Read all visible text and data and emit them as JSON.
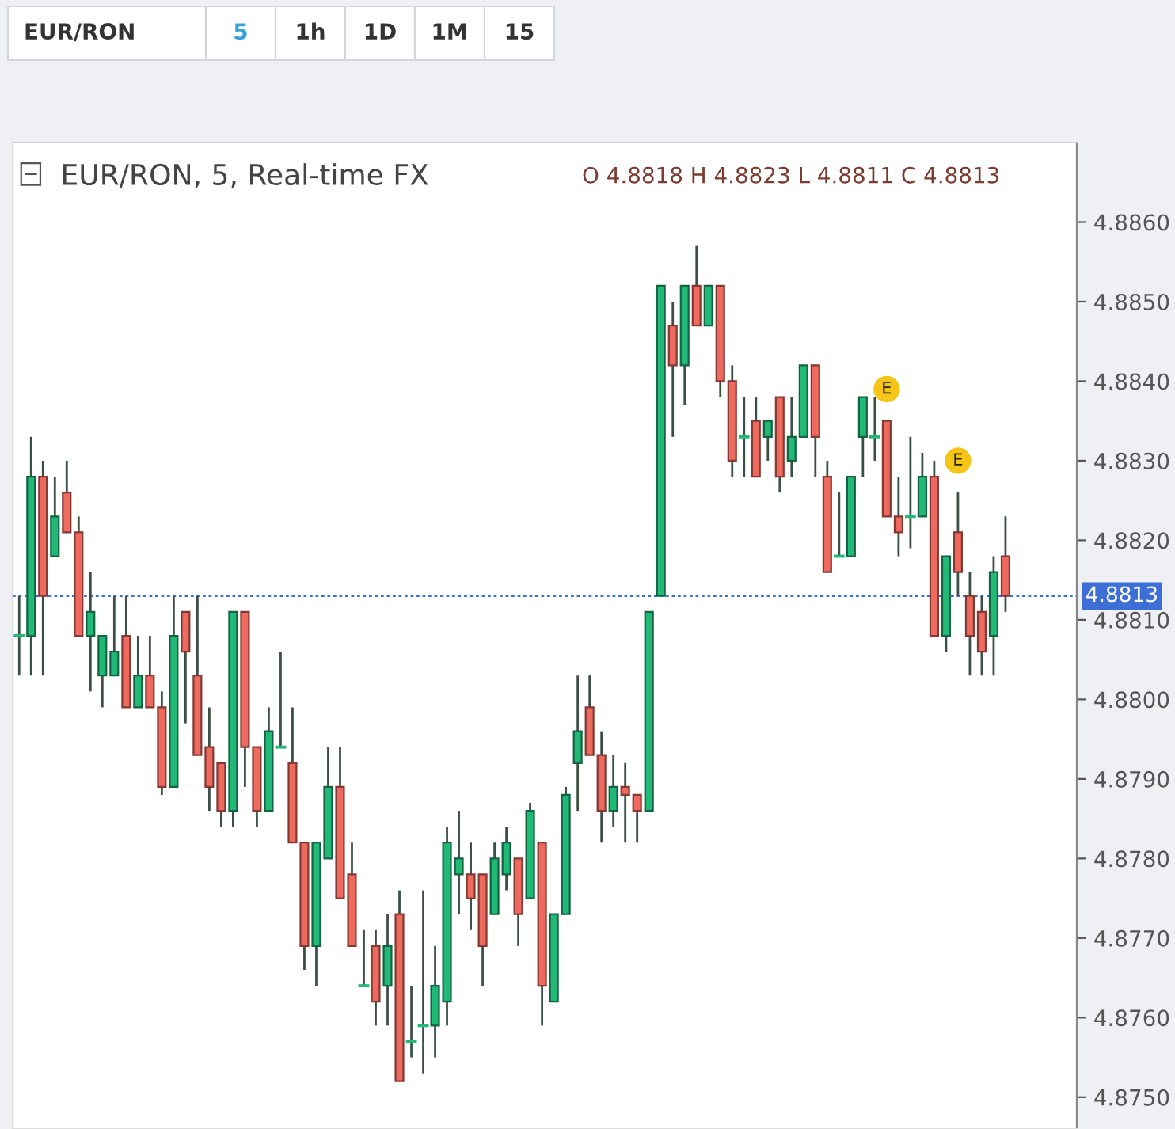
{
  "chart_data": {
    "type": "candlestick",
    "title": "EUR/RON, 5, Real-time FX",
    "subtitle": "O 4.8818 H 4.8823 L 4.8811 C 4.8813",
    "annotations": [
      "EUR/RON",
      "5",
      "1h",
      "1D",
      "1M",
      "15",
      {
        "text": "E",
        "y": 4.8839
      },
      {
        "text": "E",
        "y": 4.883
      }
    ],
    "categories": [
      null,
      null,
      null,
      null,
      null,
      null,
      null,
      null,
      null,
      null,
      null,
      null,
      null,
      null,
      null,
      null,
      null,
      null,
      null,
      null,
      null,
      null,
      null,
      null,
      null,
      null,
      null,
      null,
      null,
      null,
      null,
      null,
      null,
      null,
      null,
      null,
      null,
      null,
      null,
      null,
      null,
      null,
      null,
      null,
      null,
      null,
      null,
      null,
      null,
      null,
      null,
      null,
      null,
      null,
      null,
      null,
      null,
      null,
      null,
      null,
      null,
      null,
      null,
      null,
      null,
      null,
      null,
      null,
      null,
      null,
      null,
      null,
      null,
      null,
      null,
      null,
      null,
      null,
      null,
      null,
      null,
      null,
      null,
      null
    ],
    "ohlc": [
      [
        4.8808,
        4.8813,
        4.8803,
        4.8808
      ],
      [
        4.8808,
        4.8833,
        4.8803,
        4.8828
      ],
      [
        4.8828,
        4.883,
        4.8803,
        4.8813
      ],
      [
        4.8818,
        4.8828,
        4.8818,
        4.8823
      ],
      [
        4.8826,
        4.883,
        4.8821,
        4.8821
      ],
      [
        4.8821,
        4.8823,
        4.8808,
        4.8808
      ],
      [
        4.8808,
        4.8816,
        4.8801,
        4.8811
      ],
      [
        4.8803,
        4.8808,
        4.8799,
        4.8808
      ],
      [
        4.8803,
        4.8813,
        4.8803,
        4.8806
      ],
      [
        4.8808,
        4.8813,
        4.8799,
        4.8799
      ],
      [
        4.8799,
        4.8808,
        4.8799,
        4.8803
      ],
      [
        4.8803,
        4.8808,
        4.8799,
        4.8799
      ],
      [
        4.8799,
        4.8801,
        4.8788,
        4.8789
      ],
      [
        4.8789,
        4.8813,
        4.8789,
        4.8808
      ],
      [
        4.8811,
        4.8811,
        4.8797,
        4.8806
      ],
      [
        4.8803,
        4.8813,
        4.8793,
        4.8793
      ],
      [
        4.8794,
        4.8799,
        4.8786,
        4.8789
      ],
      [
        4.8792,
        4.8792,
        4.8784,
        4.8786
      ],
      [
        4.8786,
        4.8811,
        4.8784,
        4.8811
      ],
      [
        4.8811,
        4.8811,
        4.8789,
        4.8794
      ],
      [
        4.8794,
        4.8794,
        4.8784,
        4.8786
      ],
      [
        4.8786,
        4.8799,
        4.8786,
        4.8796
      ],
      [
        4.8794,
        4.8806,
        4.8794,
        4.8794
      ],
      [
        4.8792,
        4.8799,
        4.8782,
        4.8782
      ],
      [
        4.8782,
        4.8782,
        4.8766,
        4.8769
      ],
      [
        4.8769,
        4.8782,
        4.8764,
        4.8782
      ],
      [
        4.878,
        4.8794,
        4.878,
        4.8789
      ],
      [
        4.8789,
        4.8794,
        4.8775,
        4.8775
      ],
      [
        4.8778,
        4.8782,
        4.8769,
        4.8769
      ],
      [
        4.8764,
        4.8771,
        4.8764,
        4.8764
      ],
      [
        4.8769,
        4.8771,
        4.8759,
        4.8762
      ],
      [
        4.8764,
        4.8773,
        4.8759,
        4.8769
      ],
      [
        4.8773,
        4.8776,
        4.8752,
        4.8752
      ],
      [
        4.8757,
        4.8764,
        4.8755,
        4.8757
      ],
      [
        4.8759,
        4.8776,
        4.8753,
        4.8759
      ],
      [
        4.8759,
        4.8769,
        4.8755,
        4.8764
      ],
      [
        4.8762,
        4.8784,
        4.8759,
        4.8782
      ],
      [
        4.8778,
        4.8786,
        4.8773,
        4.878
      ],
      [
        4.8778,
        4.8782,
        4.8771,
        4.8775
      ],
      [
        4.8778,
        4.8778,
        4.8764,
        4.8769
      ],
      [
        4.8773,
        4.8782,
        4.8773,
        4.878
      ],
      [
        4.8778,
        4.8784,
        4.8776,
        4.8782
      ],
      [
        4.878,
        4.878,
        4.8769,
        4.8773
      ],
      [
        4.8775,
        4.8787,
        4.8775,
        4.8786
      ],
      [
        4.8782,
        4.8782,
        4.8759,
        4.8764
      ],
      [
        4.8762,
        4.8773,
        4.8762,
        4.8773
      ],
      [
        4.8773,
        4.8789,
        4.8773,
        4.8788
      ],
      [
        4.8792,
        4.8803,
        4.8786,
        4.8796
      ],
      [
        4.8799,
        4.8803,
        4.8793,
        4.8793
      ],
      [
        4.8793,
        4.8796,
        4.8782,
        4.8786
      ],
      [
        4.8786,
        4.8793,
        4.8784,
        4.8789
      ],
      [
        4.8789,
        4.8792,
        4.8782,
        4.8788
      ],
      [
        4.8788,
        4.8788,
        4.8782,
        4.8786
      ],
      [
        4.8786,
        4.8811,
        4.8786,
        4.8811
      ],
      [
        4.8813,
        4.8852,
        4.8813,
        4.8852
      ],
      [
        4.8847,
        4.885,
        4.8833,
        4.8842
      ],
      [
        4.8842,
        4.8852,
        4.8837,
        4.8852
      ],
      [
        4.8852,
        4.8857,
        4.8847,
        4.8847
      ],
      [
        4.8847,
        4.8852,
        4.8847,
        4.8852
      ],
      [
        4.8852,
        4.8852,
        4.8838,
        4.884
      ],
      [
        4.884,
        4.8842,
        4.8828,
        4.883
      ],
      [
        4.8833,
        4.8838,
        4.8828,
        4.8833
      ],
      [
        4.8835,
        4.8838,
        4.8828,
        4.8828
      ],
      [
        4.8833,
        4.8835,
        4.883,
        4.8835
      ],
      [
        4.8838,
        4.8838,
        4.8826,
        4.8828
      ],
      [
        4.883,
        4.8838,
        4.8828,
        4.8833
      ],
      [
        4.8833,
        4.8842,
        4.8833,
        4.8842
      ],
      [
        4.8842,
        4.8842,
        4.8828,
        4.8833
      ],
      [
        4.8828,
        4.883,
        4.8816,
        4.8816
      ],
      [
        4.8818,
        4.8826,
        4.8818,
        4.8818
      ],
      [
        4.8818,
        4.8828,
        4.8818,
        4.8828
      ],
      [
        4.8833,
        4.8838,
        4.8828,
        4.8838
      ],
      [
        4.8833,
        4.8838,
        4.883,
        4.8833
      ],
      [
        4.8835,
        4.8835,
        4.8823,
        4.8823
      ],
      [
        4.8823,
        4.8828,
        4.8818,
        4.8821
      ],
      [
        4.8823,
        4.8833,
        4.8819,
        4.8823
      ],
      [
        4.8823,
        4.8831,
        4.8823,
        4.8828
      ],
      [
        4.8828,
        4.883,
        4.8808,
        4.8808
      ],
      [
        4.8808,
        4.8818,
        4.8806,
        4.8818
      ],
      [
        4.8821,
        4.8826,
        4.8813,
        4.8816
      ],
      [
        4.8813,
        4.8816,
        4.8803,
        4.8808
      ],
      [
        4.8811,
        4.8813,
        4.8803,
        4.8806
      ],
      [
        4.8808,
        4.8818,
        4.8803,
        4.8816
      ],
      [
        4.8818,
        4.8823,
        4.8811,
        4.8813
      ]
    ],
    "colors": [
      "#22b877",
      "#22b877",
      "#ef6a5e",
      "#22b877",
      "#ef6a5e",
      "#ef6a5e",
      "#22b877",
      "#22b877",
      "#22b877",
      "#ef6a5e",
      "#22b877",
      "#ef6a5e",
      "#ef6a5e",
      "#22b877",
      "#ef6a5e",
      "#ef6a5e",
      "#ef6a5e",
      "#ef6a5e",
      "#22b877",
      "#ef6a5e",
      "#ef6a5e",
      "#22b877",
      "#22b877",
      "#ef6a5e",
      "#ef6a5e",
      "#22b877",
      "#22b877",
      "#ef6a5e",
      "#ef6a5e",
      "#22b877",
      "#ef6a5e",
      "#22b877",
      "#ef6a5e",
      "#22b877",
      "#22b877",
      "#22b877",
      "#22b877",
      "#22b877",
      "#ef6a5e",
      "#ef6a5e",
      "#22b877",
      "#22b877",
      "#ef6a5e",
      "#22b877",
      "#ef6a5e",
      "#22b877",
      "#22b877",
      "#22b877",
      "#ef6a5e",
      "#ef6a5e",
      "#22b877",
      "#ef6a5e",
      "#ef6a5e",
      "#22b877",
      "#22b877",
      "#ef6a5e",
      "#22b877",
      "#ef6a5e",
      "#22b877",
      "#ef6a5e",
      "#ef6a5e",
      "#22b877",
      "#ef6a5e",
      "#22b877",
      "#ef6a5e",
      "#22b877",
      "#22b877",
      "#ef6a5e",
      "#ef6a5e",
      "#22b877",
      "#22b877",
      "#22b877",
      "#22b877",
      "#ef6a5e",
      "#ef6a5e",
      "#22b877",
      "#22b877",
      "#ef6a5e",
      "#22b877",
      "#ef6a5e",
      "#ef6a5e",
      "#ef6a5e",
      "#22b877",
      "#ef6a5e"
    ],
    "ylim": [
      4.8746,
      4.887
    ],
    "yticks": [
      {
        "value": 4.875,
        "label": "4.8750"
      },
      {
        "value": 4.876,
        "label": "4.8760"
      },
      {
        "value": 4.877,
        "label": "4.8770"
      },
      {
        "value": 4.878,
        "label": "4.8780"
      },
      {
        "value": 4.879,
        "label": "4.8790"
      },
      {
        "value": 4.88,
        "label": "4.8800"
      },
      {
        "value": 4.881,
        "label": "4.8810"
      },
      {
        "value": 4.882,
        "label": "4.8820"
      },
      {
        "value": 4.883,
        "label": "4.8830"
      },
      {
        "value": 4.884,
        "label": "4.8840"
      },
      {
        "value": 4.885,
        "label": "4.8850"
      },
      {
        "value": 4.886,
        "label": "4.8860"
      }
    ],
    "ref_lines": [
      {
        "axis": "y",
        "value": 4.8813,
        "label": "4.8813",
        "color": "#3d6fd6",
        "line_style": "dotted"
      }
    ],
    "tick_labels": "y",
    "grid": false
  }
}
